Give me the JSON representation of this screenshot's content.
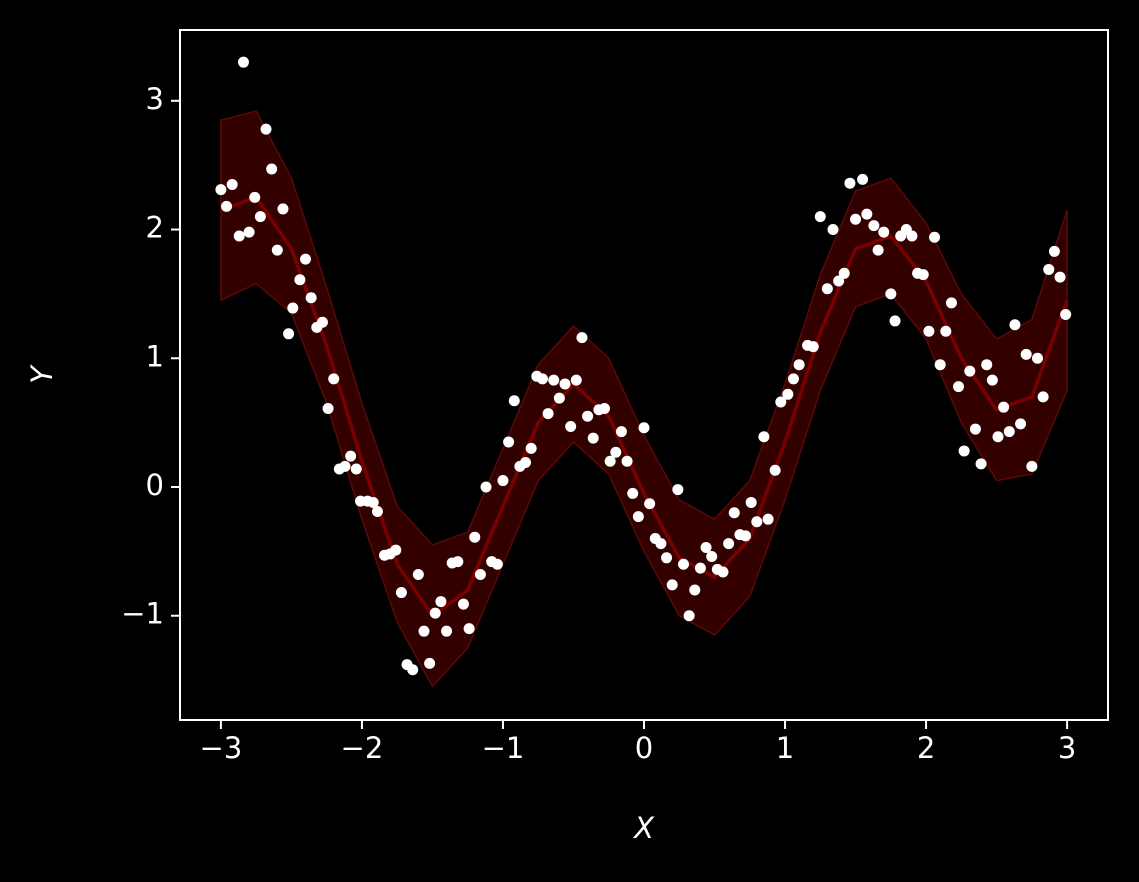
{
  "chart_data": {
    "type": "scatter",
    "xlabel": "X",
    "ylabel": "Y",
    "xlim": [
      -3.29,
      3.29
    ],
    "ylim": [
      -1.81,
      3.55
    ],
    "xticks": [
      {
        "value": -3,
        "label": "−3"
      },
      {
        "value": -2,
        "label": "−2"
      },
      {
        "value": -1,
        "label": "−1"
      },
      0,
      1,
      2,
      3
    ],
    "yticks": [
      {
        "value": -1,
        "label": "−1"
      },
      0,
      1,
      2,
      3
    ],
    "color": "#ffffff",
    "x": [
      -3.0,
      -2.96,
      -2.92,
      -2.87,
      -2.84,
      -2.8,
      -2.76,
      -2.72,
      -2.68,
      -2.64,
      -2.6,
      -2.56,
      -2.52,
      -2.49,
      -2.44,
      -2.4,
      -2.36,
      -2.32,
      -2.28,
      -2.24,
      -2.2,
      -2.16,
      -2.12,
      -2.08,
      -2.04,
      -2.01,
      -1.96,
      -1.92,
      -1.89,
      -1.84,
      -1.8,
      -1.76,
      -1.72,
      -1.68,
      -1.64,
      -1.6,
      -1.56,
      -1.52,
      -1.48,
      -1.44,
      -1.4,
      -1.36,
      -1.32,
      -1.28,
      -1.24,
      -1.2,
      -1.16,
      -1.12,
      -1.08,
      -1.04,
      -1.0,
      -0.96,
      -0.92,
      -0.88,
      -0.84,
      -0.8,
      -0.76,
      -0.72,
      -0.68,
      -0.64,
      -0.6,
      -0.56,
      -0.52,
      -0.48,
      -0.44,
      -0.4,
      -0.36,
      -0.32,
      -0.28,
      -0.24,
      -0.2,
      -0.16,
      -0.12,
      -0.08,
      -0.04,
      0.0,
      0.04,
      0.08,
      0.12,
      0.16,
      0.2,
      0.24,
      0.28,
      0.32,
      0.36,
      0.4,
      0.44,
      0.48,
      0.52,
      0.56,
      0.6,
      0.64,
      0.68,
      0.72,
      0.76,
      0.8,
      0.85,
      0.88,
      0.93,
      0.97,
      1.02,
      1.06,
      1.1,
      1.16,
      1.2,
      1.25,
      1.3,
      1.34,
      1.38,
      1.42,
      1.46,
      1.5,
      1.55,
      1.58,
      1.63,
      1.66,
      1.7,
      1.75,
      1.78,
      1.82,
      1.86,
      1.9,
      1.94,
      1.98,
      2.02,
      2.06,
      2.1,
      2.14,
      2.18,
      2.23,
      2.27,
      2.31,
      2.35,
      2.39,
      2.43,
      2.47,
      2.51,
      2.55,
      2.59,
      2.63,
      2.67,
      2.71,
      2.75,
      2.79,
      2.83,
      2.87,
      2.91,
      2.95,
      2.99
    ],
    "y": [
      2.31,
      2.18,
      2.35,
      1.95,
      3.3,
      1.98,
      2.25,
      2.1,
      2.78,
      2.47,
      1.84,
      2.16,
      1.19,
      1.39,
      1.61,
      1.77,
      1.47,
      1.24,
      1.28,
      0.61,
      0.84,
      0.14,
      0.16,
      0.24,
      0.14,
      -0.11,
      -0.11,
      -0.12,
      -0.19,
      -0.53,
      -0.52,
      -0.49,
      -0.82,
      -1.38,
      -1.42,
      -0.68,
      -1.12,
      -1.37,
      -0.98,
      -0.89,
      -1.12,
      -0.59,
      -0.58,
      -0.91,
      -1.1,
      -0.39,
      -0.68,
      0.0,
      -0.58,
      -0.6,
      0.05,
      0.35,
      0.67,
      0.16,
      0.19,
      0.3,
      0.86,
      0.84,
      0.57,
      0.83,
      0.69,
      0.8,
      0.47,
      0.83,
      1.16,
      0.55,
      0.38,
      0.6,
      0.61,
      0.2,
      0.27,
      0.43,
      0.2,
      -0.05,
      -0.23,
      0.46,
      -0.13,
      -0.4,
      -0.44,
      -0.55,
      -0.76,
      -0.02,
      -0.6,
      -1.0,
      -0.8,
      -0.63,
      -0.47,
      -0.54,
      -0.64,
      -0.66,
      -0.44,
      -0.2,
      -0.37,
      -0.38,
      -0.12,
      -0.27,
      0.39,
      -0.25,
      0.13,
      0.66,
      0.72,
      0.84,
      0.95,
      1.1,
      1.09,
      2.1,
      1.54,
      2.0,
      1.6,
      1.66,
      2.36,
      2.08,
      2.39,
      2.12,
      2.03,
      1.84,
      1.98,
      1.5,
      1.29,
      1.95,
      2.0,
      1.95,
      1.66,
      1.65,
      1.21,
      1.94,
      0.95,
      1.21,
      1.43,
      0.78,
      0.28,
      0.9,
      0.45,
      0.18,
      0.95,
      0.83,
      0.39,
      0.62,
      0.43,
      1.26,
      0.49,
      1.03,
      0.16,
      1.0,
      0.7,
      1.69,
      1.83,
      1.63,
      1.34
    ],
    "fit": {
      "color": "#7a0000",
      "band_color": "#330000",
      "x": [
        -3,
        -2.75,
        -2.5,
        -2.25,
        -2,
        -1.75,
        -1.5,
        -1.25,
        -1,
        -0.75,
        -0.5,
        -0.25,
        0,
        0.25,
        0.5,
        0.75,
        1,
        1.25,
        1.5,
        1.75,
        2,
        2.25,
        2.5,
        2.75,
        3
      ],
      "values": [
        2.15,
        2.25,
        1.85,
        1.1,
        0.2,
        -0.6,
        -1.0,
        -0.8,
        -0.15,
        0.5,
        0.8,
        0.55,
        -0.05,
        -0.55,
        -0.7,
        -0.4,
        0.35,
        1.2,
        1.85,
        1.95,
        1.6,
        1.0,
        0.6,
        0.7,
        1.45
      ],
      "lower": [
        1.45,
        1.58,
        1.35,
        0.65,
        -0.25,
        -1.05,
        -1.55,
        -1.25,
        -0.6,
        0.05,
        0.35,
        0.1,
        -0.5,
        -1.0,
        -1.15,
        -0.85,
        -0.1,
        0.75,
        1.4,
        1.5,
        1.15,
        0.5,
        0.05,
        0.1,
        0.75
      ],
      "upper": [
        2.85,
        2.92,
        2.4,
        1.55,
        0.65,
        -0.15,
        -0.45,
        -0.35,
        0.3,
        0.95,
        1.25,
        1.0,
        0.4,
        -0.1,
        -0.25,
        0.05,
        0.8,
        1.65,
        2.3,
        2.4,
        2.05,
        1.5,
        1.15,
        1.3,
        2.15
      ]
    }
  }
}
